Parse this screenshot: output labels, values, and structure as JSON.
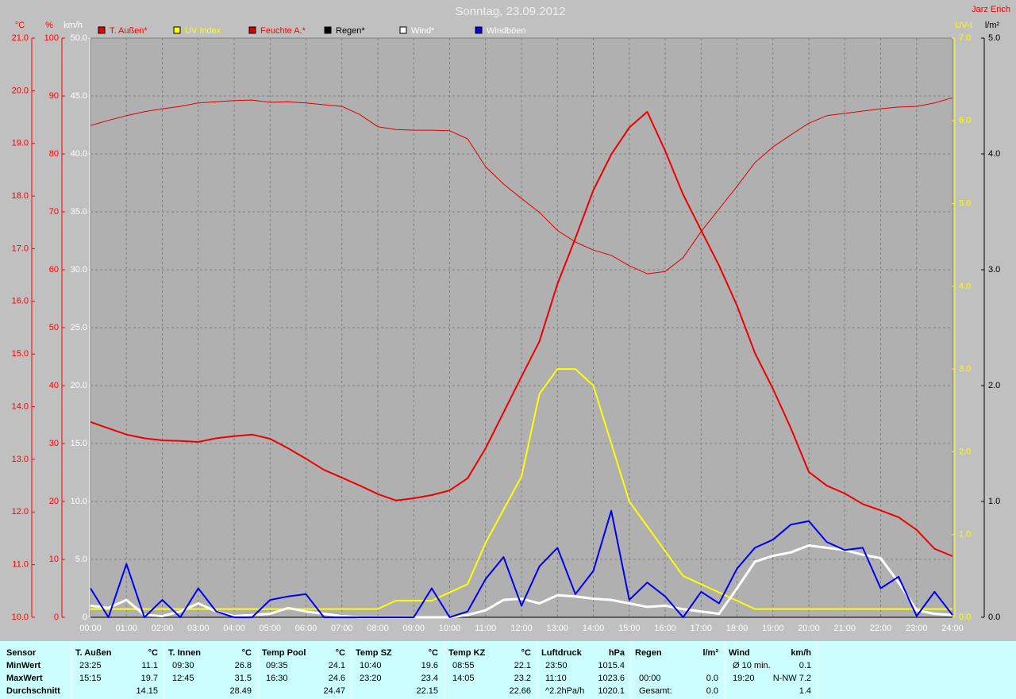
{
  "chart_data": {
    "type": "line",
    "title": "Sonntag, 23.09.2012",
    "author": "Jarz Erich",
    "xlim": [
      0,
      24
    ],
    "xticks": [
      {
        "value": 0,
        "label": "00:00"
      },
      {
        "value": 1,
        "label": "01:00"
      },
      {
        "value": 2,
        "label": "02:00"
      },
      {
        "value": 3,
        "label": "03:00"
      },
      {
        "value": 4,
        "label": "04:00"
      },
      {
        "value": 5,
        "label": "05:00"
      },
      {
        "value": 6,
        "label": "06:00"
      },
      {
        "value": 7,
        "label": "07:00"
      },
      {
        "value": 8,
        "label": "08:00"
      },
      {
        "value": 9,
        "label": "09:00"
      },
      {
        "value": 10,
        "label": "10:00"
      },
      {
        "value": 11,
        "label": "11:00"
      },
      {
        "value": 12,
        "label": "12:00"
      },
      {
        "value": 13,
        "label": "13:00"
      },
      {
        "value": 14,
        "label": "14:00"
      },
      {
        "value": 15,
        "label": "15:00"
      },
      {
        "value": 16,
        "label": "16:00"
      },
      {
        "value": 17,
        "label": "17:00"
      },
      {
        "value": 18,
        "label": "18:00"
      },
      {
        "value": 19,
        "label": "19:00"
      },
      {
        "value": 20,
        "label": "20:00"
      },
      {
        "value": 21,
        "label": "21:00"
      },
      {
        "value": 22,
        "label": "22:00"
      },
      {
        "value": 23,
        "label": "23:00"
      },
      {
        "value": 24,
        "label": "24:00"
      }
    ],
    "x": [
      0,
      0.5,
      1,
      1.5,
      2,
      2.5,
      3,
      3.5,
      4,
      4.5,
      5,
      5.5,
      6,
      6.5,
      7,
      7.5,
      8,
      8.5,
      9,
      9.5,
      10,
      10.5,
      11,
      11.5,
      12,
      12.5,
      13,
      13.5,
      14,
      14.5,
      15,
      15.5,
      16,
      16.5,
      17,
      17.5,
      18,
      18.5,
      19,
      19.5,
      20,
      20.5,
      21,
      21.5,
      22,
      22.5,
      23,
      23.5,
      24
    ],
    "axes": [
      {
        "unit": "°C",
        "color": "#ff0000",
        "ylim": [
          10,
          21
        ],
        "yticks": [
          {
            "value": 10,
            "label": "10.0"
          },
          {
            "value": 11,
            "label": "11.0"
          },
          {
            "value": 12,
            "label": "12.0"
          },
          {
            "value": 13,
            "label": "13.0"
          },
          {
            "value": 14,
            "label": "14.0"
          },
          {
            "value": 15,
            "label": "15.0"
          },
          {
            "value": 16,
            "label": "16.0"
          },
          {
            "value": 17,
            "label": "17.0"
          },
          {
            "value": 18,
            "label": "18.0"
          },
          {
            "value": 19,
            "label": "19.0"
          },
          {
            "value": 20,
            "label": "20.0"
          },
          {
            "value": 21,
            "label": "21.0"
          }
        ]
      },
      {
        "unit": "%",
        "color": "#ff0000",
        "ylim": [
          0,
          100
        ],
        "yticks": [
          0,
          10,
          20,
          30,
          40,
          50,
          60,
          70,
          80,
          90,
          100
        ]
      },
      {
        "unit": "km/h",
        "color": "#ffffff",
        "grid": true,
        "ylim": [
          0,
          50
        ],
        "yticks": [
          {
            "value": 0,
            "label": "0"
          },
          {
            "value": 5,
            "label": "5.0"
          },
          {
            "value": 10,
            "label": "10.0"
          },
          {
            "value": 15,
            "label": "15.0"
          },
          {
            "value": 20,
            "label": "20.0"
          },
          {
            "value": 25,
            "label": "25.0"
          },
          {
            "value": 30,
            "label": "30.0"
          },
          {
            "value": 35,
            "label": "35.0"
          },
          {
            "value": 40,
            "label": "40.0"
          },
          {
            "value": 45,
            "label": "45.0"
          },
          {
            "value": 50,
            "label": "50.0"
          }
        ]
      },
      {
        "unit": "UV-I",
        "color": "#ffff00",
        "ylim": [
          0,
          7
        ],
        "yticks": [
          {
            "value": 0,
            "label": "0.0"
          },
          {
            "value": 1,
            "label": "1.0"
          },
          {
            "value": 2,
            "label": "2.0"
          },
          {
            "value": 3,
            "label": "3.0"
          },
          {
            "value": 4,
            "label": "4.0"
          },
          {
            "value": 5,
            "label": "5.0"
          },
          {
            "value": 6,
            "label": "6.0"
          },
          {
            "value": 7,
            "label": "7.0"
          }
        ]
      },
      {
        "unit": "l/m²",
        "color": "#000000",
        "ylim": [
          0,
          5
        ],
        "yticks": [
          {
            "value": 0,
            "label": "0.0"
          },
          {
            "value": 1,
            "label": "1.0"
          },
          {
            "value": 2,
            "label": "2.0"
          },
          {
            "value": 3,
            "label": "3.0"
          },
          {
            "value": 4,
            "label": "4.0"
          },
          {
            "value": 5,
            "label": "5.0"
          }
        ]
      }
    ],
    "series": [
      {
        "name": "T. Außen*",
        "color": "#ee0000",
        "label_color": "#ff0000",
        "axis": 0,
        "width": 2,
        "values": [
          13.71,
          13.59,
          13.47,
          13.4,
          13.36,
          13.35,
          13.33,
          13.4,
          13.44,
          13.47,
          13.39,
          13.21,
          13.01,
          12.8,
          12.65,
          12.5,
          12.34,
          12.22,
          12.26,
          12.32,
          12.41,
          12.64,
          13.21,
          13.89,
          14.57,
          15.24,
          16.33,
          17.2,
          18.11,
          18.79,
          19.3,
          19.6,
          18.86,
          18.03,
          17.35,
          16.68,
          15.92,
          15.02,
          14.34,
          13.59,
          12.76,
          12.5,
          12.35,
          12.15,
          12.03,
          11.9,
          11.66,
          11.3,
          11.16
        ]
      },
      {
        "name": "UV Index",
        "color": "#ffff00",
        "label_color": "#ffff00",
        "axis": 3,
        "width": 2,
        "values": [
          0.1,
          0.1,
          0.1,
          0.1,
          0.1,
          0.1,
          0.1,
          0.1,
          0.1,
          0.1,
          0.1,
          0.1,
          0.1,
          0.1,
          0.1,
          0.1,
          0.1,
          0.2,
          0.2,
          0.2,
          0.3,
          0.4,
          0.9,
          1.3,
          1.7,
          2.7,
          3.0,
          3.0,
          2.8,
          2.1,
          1.4,
          1.1,
          0.8,
          0.5,
          0.4,
          0.3,
          0.2,
          0.1,
          0.1,
          0.1,
          0.1,
          0.1,
          0.1,
          0.1,
          0.1,
          0.1,
          0.1,
          0.1,
          0.1
        ]
      },
      {
        "name": "Feuchte A.*",
        "color": "#dd0000",
        "label_color": "#ff0000",
        "axis": 1,
        "width": 1,
        "values": [
          84.9,
          85.8,
          86.6,
          87.3,
          87.8,
          88.2,
          88.8,
          89.0,
          89.2,
          89.3,
          88.9,
          89.0,
          88.8,
          88.5,
          88.2,
          86.8,
          84.7,
          84.2,
          84.1,
          84.1,
          84.0,
          82.6,
          77.8,
          74.8,
          72.3,
          69.9,
          66.8,
          64.8,
          63.4,
          62.5,
          60.7,
          59.3,
          59.7,
          62.1,
          66.6,
          70.5,
          74.4,
          78.5,
          81.2,
          83.3,
          85.3,
          86.6,
          87.0,
          87.4,
          87.8,
          88.1,
          88.2,
          88.8,
          89.7
        ]
      },
      {
        "name": "Regen*",
        "color": "#000000",
        "label_color": "#000000",
        "axis": 4,
        "width": 1,
        "values": [
          0,
          0,
          0,
          0,
          0,
          0,
          0,
          0,
          0,
          0,
          0,
          0,
          0,
          0,
          0,
          0,
          0,
          0,
          0,
          0,
          0,
          0,
          0,
          0,
          0,
          0,
          0,
          0,
          0,
          0,
          0,
          0,
          0,
          0,
          0,
          0,
          0,
          0,
          0,
          0,
          0,
          0,
          0,
          0,
          0,
          0,
          0,
          0,
          0
        ]
      },
      {
        "name": "Wind*",
        "color": "#ffffff",
        "label_color": "#ffffff",
        "axis": 2,
        "width": 3,
        "values": [
          1.0,
          0.8,
          1.5,
          0.2,
          0.1,
          0.5,
          1.2,
          0.5,
          0.1,
          0.2,
          0.3,
          0.8,
          0.5,
          0.3,
          0.1,
          0,
          0,
          0,
          0,
          0,
          0,
          0.2,
          0.6,
          1.5,
          1.6,
          1.2,
          1.9,
          1.8,
          1.6,
          1.5,
          1.2,
          0.9,
          1.0,
          0.7,
          0.5,
          0.3,
          2.5,
          4.8,
          5.3,
          5.6,
          6.2,
          6.0,
          5.8,
          5.4,
          5.1,
          3.0,
          0.6,
          0.3,
          0.2
        ]
      },
      {
        "name": "Windböen",
        "color": "#0000ee",
        "label_color": "#ffffff",
        "axis": 2,
        "width": 2,
        "values": [
          2.5,
          0,
          4.6,
          0,
          1.5,
          0,
          2.5,
          0.5,
          0,
          0,
          1.5,
          1.8,
          2.0,
          0,
          0,
          0,
          0,
          0,
          0,
          2.5,
          0,
          0.5,
          3.3,
          5.2,
          1.0,
          4.4,
          6.0,
          2.0,
          4.0,
          9.2,
          1.5,
          3.0,
          1.8,
          0,
          2.2,
          1.2,
          4.2,
          6.0,
          6.7,
          8.0,
          8.3,
          6.5,
          5.8,
          6.0,
          2.5,
          3.5,
          0.1,
          2.2,
          0.2
        ]
      }
    ]
  },
  "table": {
    "corner": "Sensor",
    "headers": [
      {
        "name": "T. Außen",
        "unit": "°C"
      },
      {
        "name": "T. Innen",
        "unit": "°C"
      },
      {
        "name": "Temp Pool",
        "unit": "°C"
      },
      {
        "name": "Temp SZ",
        "unit": "°C"
      },
      {
        "name": "Temp KZ",
        "unit": "°C"
      },
      {
        "name": "Luftdruck",
        "unit": "hPa"
      },
      {
        "name": "Regen",
        "unit": "l/m²"
      },
      {
        "name": "Wind",
        "unit": "km/h"
      }
    ],
    "rows": [
      {
        "label": "MinWert",
        "cells": [
          [
            "23:25",
            "11.1"
          ],
          [
            "09:30",
            "26.8"
          ],
          [
            "09:35",
            "24.1"
          ],
          [
            "10:40",
            "19.6"
          ],
          [
            "08:55",
            "22.1"
          ],
          [
            "23:50",
            "1015.4"
          ],
          [
            null,
            null
          ],
          [
            "Ø 10 min.",
            "0.1"
          ]
        ]
      },
      {
        "label": "MaxWert",
        "cells": [
          [
            "15:15",
            "19.7"
          ],
          [
            "12:45",
            "31.5"
          ],
          [
            "16:30",
            "24.6"
          ],
          [
            "23:20",
            "23.4"
          ],
          [
            "14:05",
            "23.2"
          ],
          [
            "11:10",
            "1023.6"
          ],
          [
            "00:00",
            "0.0"
          ],
          [
            "19:20",
            "N-NW 7.2"
          ]
        ]
      },
      {
        "label": "Durchschnitt",
        "cells": [
          [
            null,
            "14.15"
          ],
          [
            null,
            "28.49"
          ],
          [
            null,
            "24.47"
          ],
          [
            null,
            "22.15"
          ],
          [
            null,
            "22.66"
          ],
          [
            "^2.2hPa/h",
            "1020.1"
          ],
          [
            "Gesamt:",
            "0.0"
          ],
          [
            null,
            "1.4"
          ]
        ]
      }
    ]
  }
}
